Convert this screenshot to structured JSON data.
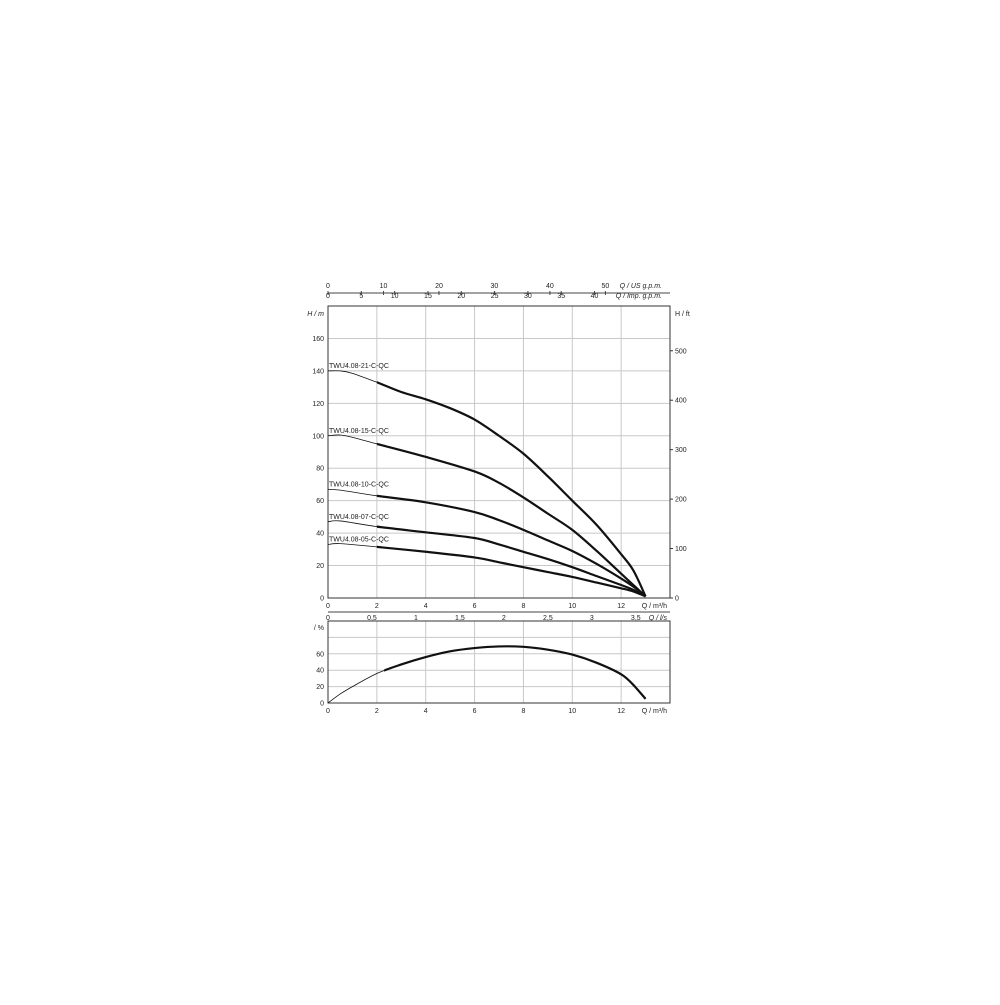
{
  "chart_data": [
    {
      "type": "line",
      "title": "",
      "xlabel": "Q / m³/h",
      "ylabel": "H / m",
      "y2label": "H / ft",
      "xlim": [
        0,
        14
      ],
      "ylim": [
        0,
        180
      ],
      "xticks": [
        0,
        2,
        4,
        6,
        8,
        10,
        12
      ],
      "yticks": [
        0,
        20,
        40,
        60,
        80,
        100,
        120,
        140,
        160
      ],
      "y2ticks": [
        0,
        100,
        200,
        300,
        400,
        500
      ],
      "top_axes": [
        {
          "label": "Q / US g.p.m.",
          "factor": 4.403,
          "ticks": [
            0,
            10,
            20,
            30,
            40,
            50
          ]
        },
        {
          "label": "Q / Imp. g.p.m.",
          "factor": 3.666,
          "ticks": [
            0,
            5,
            10,
            15,
            20,
            25,
            30,
            35,
            40
          ]
        }
      ],
      "grid": true,
      "series": [
        {
          "name": "TWU4.08-21-C-QC",
          "x": [
            0,
            0.5,
            1,
            2,
            3,
            4,
            5,
            6,
            7,
            8,
            9,
            10,
            11,
            12,
            12.5,
            13
          ],
          "y": [
            140,
            140,
            138.5,
            133,
            127,
            122.5,
            117,
            110,
            100,
            89,
            75,
            60,
            45,
            27,
            17,
            1
          ]
        },
        {
          "name": "TWU4.08-15-C-QC",
          "x": [
            0,
            0.5,
            1,
            2,
            4,
            6,
            7,
            8,
            9,
            10,
            11,
            12,
            12.5,
            13
          ],
          "y": [
            100,
            100.5,
            99,
            95,
            87,
            78,
            71,
            62,
            52,
            42,
            29,
            15,
            8,
            1
          ]
        },
        {
          "name": "TWU4.08-10-C-QC",
          "x": [
            0,
            0.5,
            2,
            4,
            6,
            7,
            8,
            9,
            10,
            11,
            12,
            12.5,
            13
          ],
          "y": [
            67,
            66.5,
            63,
            59,
            53,
            48,
            42,
            35.5,
            29,
            21,
            12,
            7,
            1
          ]
        },
        {
          "name": "TWU4.08-07-C-QC",
          "x": [
            0,
            0.5,
            2,
            4,
            6,
            7,
            8,
            9,
            10,
            11,
            12,
            12.5,
            13
          ],
          "y": [
            47,
            47.5,
            44,
            40.5,
            37,
            33,
            28.5,
            24,
            19,
            13.5,
            8,
            5,
            1
          ]
        },
        {
          "name": "TWU4.08-05-C-QC",
          "x": [
            0,
            0.5,
            2,
            4,
            6,
            7,
            8,
            9,
            10,
            11,
            12,
            12.5,
            13
          ],
          "y": [
            33,
            33.5,
            31.5,
            28.5,
            25,
            22,
            19,
            16,
            13,
            9.5,
            6,
            4,
            1
          ]
        }
      ]
    },
    {
      "type": "line",
      "title": "",
      "xlabel": "Q / m³/h",
      "ylabel": "/ %",
      "x2label": "Q / l/s",
      "xlim": [
        0,
        14
      ],
      "ylim": [
        0,
        100
      ],
      "xticks": [
        0,
        2,
        4,
        6,
        8,
        10,
        12
      ],
      "yticks": [
        0,
        20,
        40,
        60
      ],
      "x2ticks": [
        "0",
        "0,5",
        "1",
        "1,5",
        "2",
        "2,5",
        "3",
        "3,5"
      ],
      "grid": true,
      "series": [
        {
          "x": [
            0,
            0.5,
            1,
            2,
            3,
            4,
            5,
            6,
            7,
            8,
            9,
            10,
            11,
            12,
            12.5,
            13
          ],
          "y": [
            0,
            11,
            20,
            36,
            47,
            56,
            63,
            67,
            69,
            68.5,
            65,
            59,
            49,
            35,
            22,
            5
          ]
        }
      ]
    }
  ]
}
